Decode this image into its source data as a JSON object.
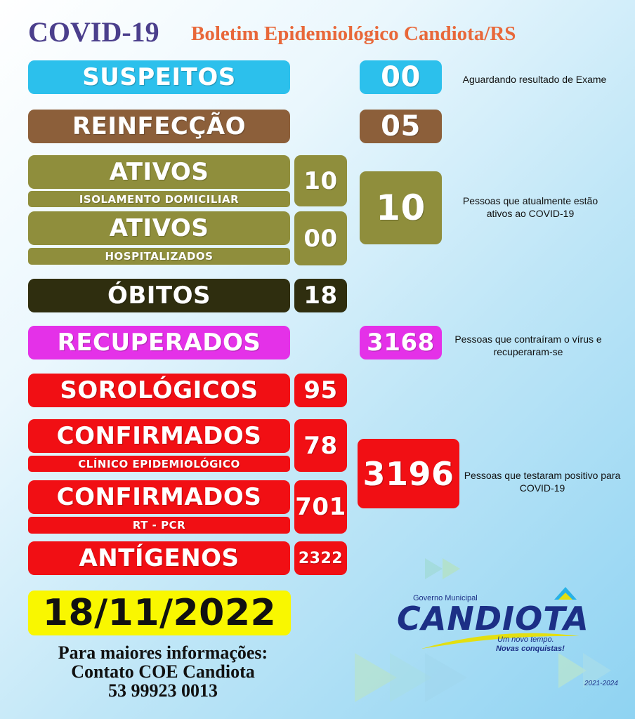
{
  "header": {
    "covid": "COVID-19",
    "boletim": "Boletim Epidemiológico Candiota/RS"
  },
  "suspeitos": {
    "label": "SUSPEITOS",
    "value": "00",
    "note": "Aguardando resultado de Exame"
  },
  "reinfeccao": {
    "label": "REINFECÇÃO",
    "value": "05"
  },
  "ativos": {
    "label1": "ATIVOS",
    "sub1": "ISOLAMENTO DOMICILIAR",
    "value1": "10",
    "label2": "ATIVOS",
    "sub2": "HOSPITALIZADOS",
    "value2": "00",
    "total": "10",
    "note": "Pessoas que atualmente estão ativos ao COVID-19"
  },
  "obitos": {
    "label": "ÓBITOS",
    "value": "18"
  },
  "recuperados": {
    "label": "RECUPERADOS",
    "value": "3168",
    "note": "Pessoas que contraíram o vírus e recuperaram-se"
  },
  "sorologicos": {
    "label": "SOROLÓGICOS",
    "value": "95"
  },
  "confirmados": {
    "label1": "CONFIRMADOS",
    "sub1": "CLÍNICO EPIDEMIOLÓGICO",
    "value1": "78",
    "label2": "CONFIRMADOS",
    "sub2": "RT - PCR",
    "value2": "701",
    "total": "3196",
    "note": "Pessoas que testaram positivo para COVID-19"
  },
  "antigenos": {
    "label": "ANTÍGENOS",
    "value": "2322"
  },
  "date": "18/11/2022",
  "contact": {
    "line1": "Para maiores informações:",
    "line2": "Contato COE Candiota",
    "line3": "53 99923 0013"
  },
  "logo": {
    "top": "Governo Municipal",
    "name": "CANDIOTA",
    "slogan1": "Um novo tempo.",
    "slogan2": "Novas conquistas!",
    "years": "2021-2024"
  },
  "colors": {
    "suspeitos": "#2cc0ec",
    "reinfeccao": "#8c5f3a",
    "ativos": "#8f8e3c",
    "obitos": "#2f2e0f",
    "recuperados": "#e431e8",
    "red": "#f10f14",
    "date_bg": "#f9f700"
  }
}
